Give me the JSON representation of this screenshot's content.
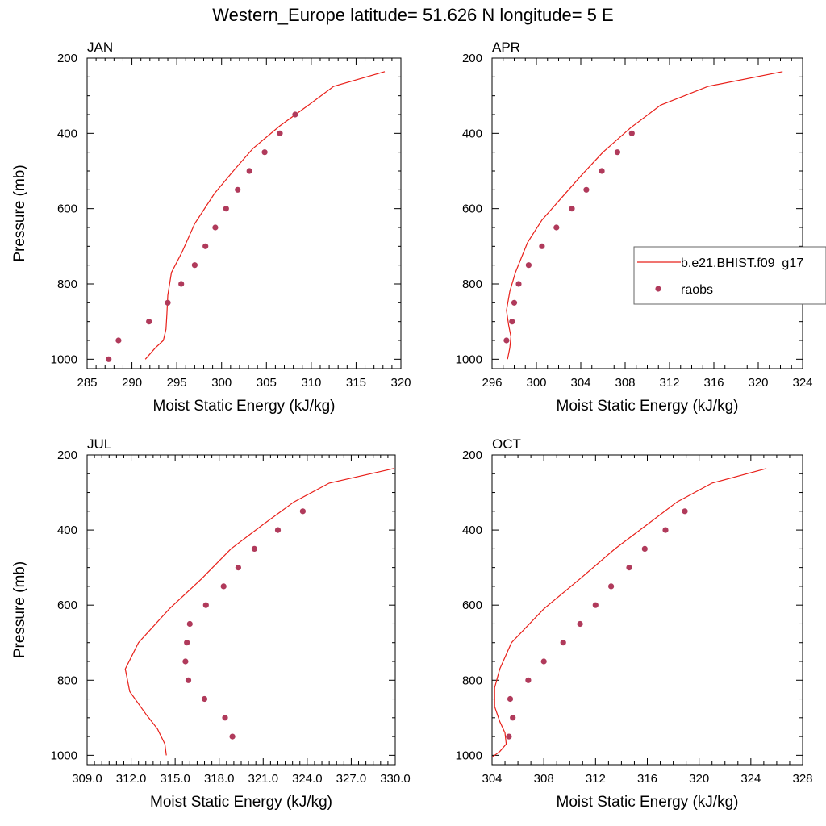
{
  "title": "Western_Europe  latitude= 51.626 N longitude= 5 E",
  "colors": {
    "model": "#e8201a",
    "obs": "#b03a5b",
    "axis": "#000000"
  },
  "legend": {
    "panel_index": 1,
    "position": "right-middle",
    "entries": [
      {
        "label": "b.e21.BHIST.f09_g17",
        "kind": "line",
        "color": "#e8201a"
      },
      {
        "label": "raobs",
        "kind": "marker",
        "color": "#b03a5b"
      }
    ]
  },
  "chart_data": [
    {
      "type": "line",
      "title": "JAN",
      "xlabel": "Moist Static Energy (kJ/kg)",
      "ylabel": "Pressure (mb)",
      "xlim": [
        285,
        320
      ],
      "ylim": [
        200,
        1025
      ],
      "y_inverted": true,
      "xticks": [
        285,
        290,
        295,
        300,
        305,
        310,
        315,
        320
      ],
      "xtick_labels": [
        "285",
        "290",
        "295",
        "300",
        "305",
        "310",
        "315",
        "320"
      ],
      "xminor": 1,
      "yticks": [
        200,
        400,
        600,
        800,
        1000
      ],
      "ytick_labels": [
        "200",
        "400",
        "600",
        "800",
        "1000"
      ],
      "yminor": 50,
      "series": [
        {
          "name": "b.e21.BHIST.f09_g17",
          "style": "line",
          "x": [
            318.2,
            312.5,
            309.7,
            306.5,
            303.5,
            301.3,
            299.2,
            297.0,
            295.6,
            294.4,
            294.0,
            293.9,
            293.8,
            293.5,
            292.6,
            291.5
          ],
          "y": [
            236,
            275,
            325,
            380,
            440,
            500,
            560,
            640,
            715,
            770,
            830,
            880,
            920,
            950,
            970,
            1000
          ]
        },
        {
          "name": "raobs",
          "style": "marker",
          "x": [
            308.2,
            306.5,
            304.8,
            303.1,
            301.8,
            300.5,
            299.3,
            298.2,
            297.0,
            295.5,
            294.0,
            291.9,
            288.5,
            287.4
          ],
          "y": [
            350,
            400,
            450,
            500,
            550,
            600,
            650,
            700,
            750,
            800,
            850,
            900,
            950,
            1000
          ]
        }
      ]
    },
    {
      "type": "line",
      "title": "APR",
      "xlabel": "Moist Static Energy (kJ/kg)",
      "ylabel": "",
      "xlim": [
        296,
        324
      ],
      "ylim": [
        200,
        1025
      ],
      "y_inverted": true,
      "xticks": [
        296,
        300,
        304,
        308,
        312,
        316,
        320,
        324
      ],
      "xtick_labels": [
        "296",
        "300",
        "304",
        "308",
        "312",
        "316",
        "320",
        "324"
      ],
      "xminor": 1,
      "yticks": [
        200,
        400,
        600,
        800,
        1000
      ],
      "ytick_labels": [
        "200",
        "400",
        "600",
        "800",
        "1000"
      ],
      "yminor": 50,
      "series": [
        {
          "name": "b.e21.BHIST.f09_g17",
          "style": "line",
          "x": [
            322.2,
            315.5,
            311.2,
            308.5,
            306.0,
            304.1,
            302.3,
            300.5,
            299.2,
            298.1,
            297.6,
            297.3,
            297.5,
            297.7,
            297.6,
            297.4
          ],
          "y": [
            236,
            275,
            325,
            385,
            450,
            510,
            570,
            630,
            690,
            770,
            820,
            870,
            910,
            940,
            970,
            1000
          ]
        },
        {
          "name": "raobs",
          "style": "marker",
          "x": [
            308.6,
            307.3,
            305.9,
            304.5,
            303.2,
            301.8,
            300.5,
            299.3,
            298.4,
            298.0,
            297.8,
            297.3
          ],
          "y": [
            400,
            450,
            500,
            550,
            600,
            650,
            700,
            750,
            800,
            850,
            900,
            950
          ]
        }
      ]
    },
    {
      "type": "line",
      "title": "JUL",
      "xlabel": "Moist Static Energy (kJ/kg)",
      "ylabel": "Pressure (mb)",
      "xlim": [
        309,
        330
      ],
      "ylim": [
        200,
        1025
      ],
      "y_inverted": true,
      "xticks": [
        309,
        312,
        315,
        318,
        321,
        324,
        327,
        330
      ],
      "xtick_labels": [
        "309.0",
        "312.0",
        "315.0",
        "318.0",
        "321.0",
        "324.0",
        "327.0",
        "330.0"
      ],
      "xminor": 0.5,
      "yticks": [
        200,
        400,
        600,
        800,
        1000
      ],
      "ytick_labels": [
        "200",
        "400",
        "600",
        "800",
        "1000"
      ],
      "yminor": 50,
      "series": [
        {
          "name": "b.e21.BHIST.f09_g17",
          "style": "line",
          "x": [
            329.9,
            325.5,
            323.1,
            321.0,
            318.8,
            316.8,
            314.6,
            312.5,
            311.6,
            311.9,
            313.0,
            313.8,
            314.3,
            314.4
          ],
          "y": [
            236,
            275,
            325,
            385,
            450,
            530,
            610,
            700,
            770,
            830,
            890,
            930,
            970,
            1000
          ]
        },
        {
          "name": "raobs",
          "style": "marker",
          "x": [
            323.7,
            322.0,
            320.4,
            319.3,
            318.3,
            317.1,
            316.0,
            315.8,
            315.7,
            315.9,
            317.0,
            318.4,
            318.9
          ],
          "y": [
            350,
            400,
            450,
            500,
            550,
            600,
            650,
            700,
            750,
            800,
            850,
            900,
            950
          ]
        }
      ]
    },
    {
      "type": "line",
      "title": "OCT",
      "xlabel": "Moist Static Energy (kJ/kg)",
      "ylabel": "",
      "xlim": [
        304,
        328
      ],
      "ylim": [
        200,
        1025
      ],
      "y_inverted": true,
      "xticks": [
        304,
        308,
        312,
        316,
        320,
        324,
        328
      ],
      "xtick_labels": [
        "304",
        "308",
        "312",
        "316",
        "320",
        "324",
        "328"
      ],
      "xminor": 1,
      "yticks": [
        200,
        400,
        600,
        800,
        1000
      ],
      "ytick_labels": [
        "200",
        "400",
        "600",
        "800",
        "1000"
      ],
      "yminor": 50,
      "series": [
        {
          "name": "b.e21.BHIST.f09_g17",
          "style": "line",
          "x": [
            325.2,
            321.0,
            318.3,
            316.0,
            313.5,
            310.8,
            308.0,
            305.5,
            304.6,
            304.2,
            304.2,
            304.6,
            305.0,
            305.1,
            304.6,
            304.0
          ],
          "y": [
            236,
            275,
            325,
            385,
            450,
            530,
            610,
            700,
            770,
            820,
            870,
            910,
            940,
            970,
            990,
            1005
          ]
        },
        {
          "name": "raobs",
          "style": "marker",
          "x": [
            318.9,
            317.4,
            315.8,
            314.6,
            313.2,
            312.0,
            310.8,
            309.5,
            308.0,
            306.8,
            305.4,
            305.6,
            305.3
          ],
          "y": [
            350,
            400,
            450,
            500,
            550,
            600,
            650,
            700,
            750,
            800,
            850,
            900,
            950
          ]
        }
      ]
    }
  ]
}
